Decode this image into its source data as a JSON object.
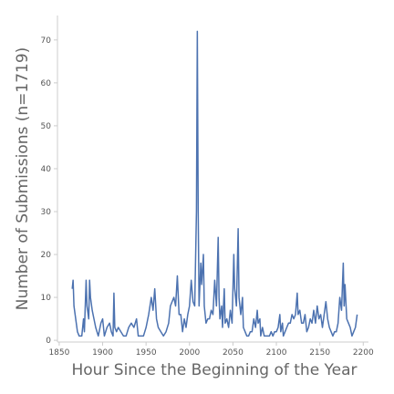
{
  "chart_data": {
    "type": "line",
    "xlabel": "Hour Since the Beginning of the Year",
    "ylabel": "Number of Submissions (n=1719)",
    "color": "#4c72b0",
    "xlim": [
      1848,
      2206
    ],
    "ylim": [
      -0.4,
      75.7
    ],
    "xticks": [
      1850,
      1900,
      1950,
      2000,
      2050,
      2100,
      2150,
      2200
    ],
    "yticks": [
      0,
      10,
      20,
      30,
      40,
      50,
      60,
      70
    ],
    "grid": false,
    "x": [
      1865,
      1866,
      1867,
      1869,
      1871,
      1873,
      1876,
      1878,
      1879,
      1881,
      1882,
      1884,
      1885,
      1886,
      1888,
      1890,
      1892,
      1895,
      1898,
      1900,
      1902,
      1905,
      1908,
      1910,
      1912,
      1913,
      1914,
      1916,
      1918,
      1921,
      1924,
      1927,
      1930,
      1933,
      1936,
      1939,
      1941,
      1944,
      1947,
      1950,
      1953,
      1956,
      1958,
      1960,
      1962,
      1964,
      1967,
      1970,
      1973,
      1976,
      1978,
      1980,
      1982,
      1984,
      1986,
      1988,
      1990,
      1992,
      1994,
      1996,
      1998,
      2000,
      2002,
      2004,
      2006,
      2008,
      2009,
      2010,
      2011,
      2013,
      2014,
      2016,
      2017,
      2019,
      2021,
      2023,
      2025,
      2027,
      2029,
      2031,
      2033,
      2034,
      2035,
      2037,
      2038,
      2040,
      2041,
      2043,
      2045,
      2047,
      2049,
      2051,
      2052,
      2054,
      2056,
      2057,
      2059,
      2061,
      2062,
      2064,
      2066,
      2068,
      2070,
      2072,
      2074,
      2076,
      2078,
      2079,
      2081,
      2082,
      2084,
      2086,
      2088,
      2090,
      2092,
      2094,
      2096,
      2098,
      2100,
      2102,
      2104,
      2105,
      2107,
      2108,
      2110,
      2112,
      2114,
      2116,
      2118,
      2120,
      2122,
      2124,
      2125,
      2127,
      2129,
      2131,
      2133,
      2135,
      2137,
      2139,
      2141,
      2143,
      2145,
      2147,
      2149,
      2151,
      2153,
      2155,
      2157,
      2159,
      2161,
      2163,
      2165,
      2167,
      2169,
      2171,
      2173,
      2175,
      2177,
      2178,
      2179,
      2181,
      2183,
      2185,
      2187,
      2189,
      2191,
      2193
    ],
    "values": [
      12,
      14,
      8,
      5,
      2,
      1,
      1,
      5,
      2,
      14,
      8,
      5,
      14,
      10,
      7,
      5,
      3,
      1,
      4,
      5,
      1,
      3,
      4,
      2,
      1,
      11,
      3,
      2,
      3,
      2,
      1,
      1,
      3,
      4,
      3,
      5,
      1,
      1,
      1,
      3,
      6,
      10,
      7,
      12,
      5,
      3,
      2,
      1,
      2,
      4,
      8,
      9,
      10,
      8,
      15,
      6,
      6,
      2,
      5,
      3,
      6,
      8,
      14,
      9,
      8,
      30,
      72,
      30,
      8,
      18,
      13,
      20,
      8,
      4,
      5,
      5,
      7,
      6,
      14,
      8,
      24,
      10,
      5,
      8,
      3,
      12,
      4,
      5,
      3,
      7,
      4,
      20,
      12,
      8,
      26,
      10,
      6,
      10,
      3,
      2,
      1,
      1,
      2,
      2,
      5,
      3,
      7,
      4,
      5,
      1,
      3,
      1,
      1,
      1,
      1,
      2,
      1,
      2,
      2,
      3,
      6,
      2,
      4,
      1,
      2,
      3,
      4,
      4,
      6,
      5,
      6,
      11,
      6,
      7,
      4,
      4,
      6,
      2,
      3,
      5,
      4,
      7,
      4,
      8,
      5,
      6,
      3,
      6,
      9,
      5,
      3,
      2,
      1,
      2,
      2,
      4,
      10,
      7,
      18,
      8,
      13,
      5,
      4,
      3,
      1,
      2,
      3,
      6
    ]
  }
}
